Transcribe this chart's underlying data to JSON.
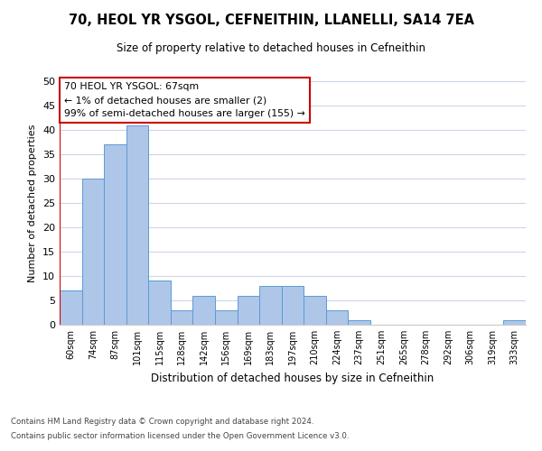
{
  "title": "70, HEOL YR YSGOL, CEFNEITHIN, LLANELLI, SA14 7EA",
  "subtitle": "Size of property relative to detached houses in Cefneithin",
  "xlabel": "Distribution of detached houses by size in Cefneithin",
  "ylabel": "Number of detached properties",
  "categories": [
    "60sqm",
    "74sqm",
    "87sqm",
    "101sqm",
    "115sqm",
    "128sqm",
    "142sqm",
    "156sqm",
    "169sqm",
    "183sqm",
    "197sqm",
    "210sqm",
    "224sqm",
    "237sqm",
    "251sqm",
    "265sqm",
    "278sqm",
    "292sqm",
    "306sqm",
    "319sqm",
    "333sqm"
  ],
  "values": [
    7,
    30,
    37,
    41,
    9,
    3,
    6,
    3,
    6,
    8,
    8,
    6,
    3,
    1,
    0,
    0,
    0,
    0,
    0,
    0,
    1
  ],
  "bar_color": "#aec6e8",
  "bar_edge_color": "#5b9bd5",
  "highlight_line_color": "#cc0000",
  "ylim": [
    0,
    50
  ],
  "yticks": [
    0,
    5,
    10,
    15,
    20,
    25,
    30,
    35,
    40,
    45,
    50
  ],
  "annotation_box_text": "70 HEOL YR YSGOL: 67sqm\n← 1% of detached houses are smaller (2)\n99% of semi-detached houses are larger (155) →",
  "footer_line1": "Contains HM Land Registry data © Crown copyright and database right 2024.",
  "footer_line2": "Contains public sector information licensed under the Open Government Licence v3.0.",
  "background_color": "#ffffff",
  "grid_color": "#ccd6e8"
}
